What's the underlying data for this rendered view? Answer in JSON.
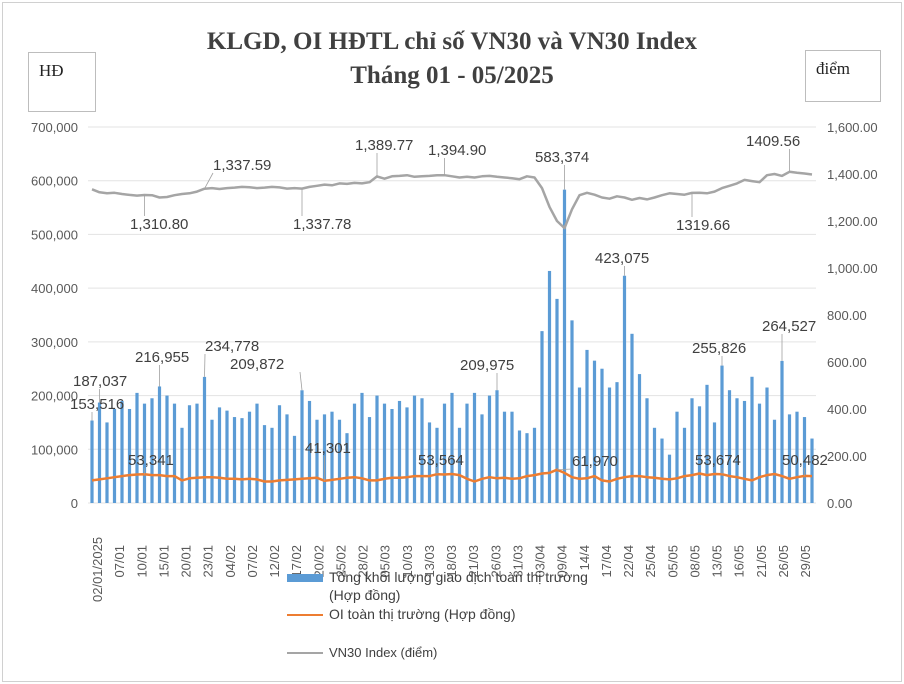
{
  "chart_data": {
    "type": "bar",
    "title": "KLGD, OI HĐTL chỉ số VN30 và VN30 Index",
    "subtitle": "Tháng 01 - 05/2025",
    "ylabel": "HĐ",
    "y2label": "điểm",
    "ylim": [
      0,
      700000
    ],
    "y2lim": [
      0,
      1600
    ],
    "yticks": [
      "0",
      "100,000",
      "200,000",
      "300,000",
      "400,000",
      "500,000",
      "600,000",
      "700,000"
    ],
    "y2ticks": [
      "0.00",
      "200.00",
      "400.00",
      "600.00",
      "800.00",
      "1,000.00",
      "1,200.00",
      "1,400.00",
      "1,600.00"
    ],
    "grid": true,
    "legend_position": "bottom",
    "x_tick_labels": [
      "02/01/2025",
      "07/01",
      "10/01",
      "15/01",
      "20/01",
      "23/01",
      "04/02",
      "07/02",
      "12/02",
      "17/02",
      "20/02",
      "25/02",
      "28/02",
      "05/03",
      "10/03",
      "13/03",
      "18/03",
      "21/03",
      "26/03",
      "31/03",
      "03/04",
      "09/04",
      "14/4",
      "17/04",
      "22/04",
      "25/04",
      "05/05",
      "08/05",
      "13/05",
      "16/05",
      "21/05",
      "26/05",
      "29/05"
    ],
    "series": [
      {
        "name": "Tổng khối lượng giao dịch toàn thị trường (Hợp đồng)",
        "type": "bar",
        "axis": "left",
        "color": "#5b9bd5",
        "values": [
          153516,
          187037,
          150000,
          175000,
          190000,
          175000,
          205000,
          185000,
          195000,
          216955,
          200000,
          185000,
          140000,
          182000,
          185000,
          234778,
          155000,
          178000,
          172000,
          160000,
          158000,
          170000,
          185000,
          145000,
          140000,
          182000,
          165000,
          125000,
          209872,
          190000,
          155000,
          165000,
          170000,
          155000,
          130000,
          185000,
          205000,
          160000,
          200000,
          185000,
          175000,
          190000,
          178000,
          200000,
          195000,
          150000,
          140000,
          185000,
          205000,
          140000,
          185000,
          205000,
          165000,
          200000,
          209975,
          170000,
          170000,
          135000,
          130000,
          140000,
          320000,
          432000,
          380000,
          583374,
          340000,
          215000,
          285000,
          265000,
          250000,
          215000,
          225000,
          423075,
          315000,
          240000,
          195000,
          140000,
          120000,
          90000,
          170000,
          140000,
          195000,
          180000,
          220000,
          150000,
          255826,
          210000,
          195000,
          190000,
          235000,
          185000,
          215000,
          155000,
          264527,
          165000,
          170000,
          160000,
          120000
        ]
      },
      {
        "name": "OI toàn thị trường (Hợp đồng)",
        "type": "line",
        "axis": "left",
        "color": "#ed7d31",
        "values": [
          42000,
          44000,
          46000,
          48000,
          50000,
          52000,
          53000,
          53341,
          52000,
          52000,
          50000,
          50000,
          42000,
          46000,
          47000,
          48000,
          48000,
          47000,
          45000,
          45000,
          44000,
          45000,
          44000,
          40000,
          40000,
          42000,
          43000,
          44000,
          45000,
          46000,
          47000,
          41301,
          43000,
          45000,
          47000,
          48000,
          46000,
          42000,
          42000,
          45000,
          47000,
          47000,
          48000,
          50000,
          50000,
          50000,
          53564,
          53000,
          54000,
          52000,
          45000,
          40000,
          45000,
          48000,
          46000,
          47000,
          45000,
          46000,
          50000,
          52000,
          55000,
          56000,
          61970,
          56000,
          48000,
          45000,
          46000,
          50000,
          42000,
          40000,
          45000,
          48000,
          50000,
          50000,
          48000,
          47000,
          45000,
          44000,
          46000,
          50000,
          52000,
          55000,
          52000,
          54000,
          53674,
          50000,
          48000,
          45000,
          42000,
          48000,
          52000,
          54000,
          50000,
          45000,
          48000,
          50482,
          50000
        ]
      },
      {
        "name": "VN30 Index (điểm)",
        "type": "line",
        "axis": "right",
        "color": "#a5a5a5",
        "values": [
          1335,
          1322,
          1318,
          1320,
          1315,
          1311,
          1308,
          1310.8,
          1310,
          1300,
          1302,
          1310,
          1315,
          1318,
          1325,
          1337.59,
          1340,
          1336,
          1340,
          1342,
          1345,
          1344,
          1340,
          1342,
          1345,
          1343,
          1338,
          1340,
          1337.78,
          1345,
          1350,
          1355,
          1352,
          1360,
          1358,
          1362,
          1360,
          1365,
          1389.77,
          1380,
          1390,
          1392,
          1395,
          1388,
          1390,
          1392,
          1395,
          1394.9,
          1390,
          1385,
          1388,
          1385,
          1390,
          1392,
          1388,
          1385,
          1382,
          1378,
          1390,
          1385,
          1340,
          1260,
          1200,
          1170,
          1250,
          1310,
          1320,
          1312,
          1300,
          1295,
          1305,
          1300,
          1290,
          1298,
          1292,
          1300,
          1310,
          1318,
          1315,
          1312,
          1319.66,
          1320,
          1318,
          1325,
          1340,
          1350,
          1360,
          1375,
          1370,
          1365,
          1395,
          1400,
          1392,
          1409.56,
          1405,
          1402,
          1398
        ]
      }
    ],
    "annotations": [
      {
        "series": 0,
        "index": 0,
        "text": "153,516"
      },
      {
        "series": 0,
        "index": 1,
        "text": "187,037"
      },
      {
        "series": 0,
        "index": 9,
        "text": "216,955"
      },
      {
        "series": 0,
        "index": 15,
        "text": "234,778"
      },
      {
        "series": 0,
        "index": 28,
        "text": "209,872"
      },
      {
        "series": 0,
        "index": 54,
        "text": "209,975"
      },
      {
        "series": 0,
        "index": 63,
        "text": "583,374"
      },
      {
        "series": 0,
        "index": 71,
        "text": "423,075"
      },
      {
        "series": 0,
        "index": 84,
        "text": "255,826"
      },
      {
        "series": 0,
        "index": 92,
        "text": "264,527"
      },
      {
        "series": 1,
        "index": 7,
        "text": "53,341"
      },
      {
        "series": 1,
        "index": 31,
        "text": "41,301"
      },
      {
        "series": 1,
        "index": 46,
        "text": "53,564"
      },
      {
        "series": 1,
        "index": 62,
        "text": "61,970"
      },
      {
        "series": 1,
        "index": 84,
        "text": "53,674"
      },
      {
        "series": 1,
        "index": 95,
        "text": "50,482"
      },
      {
        "series": 2,
        "index": 7,
        "text": "1,310.80"
      },
      {
        "series": 2,
        "index": 15,
        "text": "1,337.59"
      },
      {
        "series": 2,
        "index": 28,
        "text": "1,337.78"
      },
      {
        "series": 2,
        "index": 38,
        "text": "1,389.77"
      },
      {
        "series": 2,
        "index": 47,
        "text": "1,394.90"
      },
      {
        "series": 2,
        "index": 80,
        "text": "1319.66"
      },
      {
        "series": 2,
        "index": 93,
        "text": "1409.56"
      }
    ]
  },
  "legend": {
    "bar_label": "Tổng khối lượng giao dịch toàn thị trường",
    "bar_label_2": "(Hợp đồng)",
    "oi_label": "OI toàn thị trường (Hợp đồng)",
    "index_label": "VN30 Index (điểm)"
  }
}
